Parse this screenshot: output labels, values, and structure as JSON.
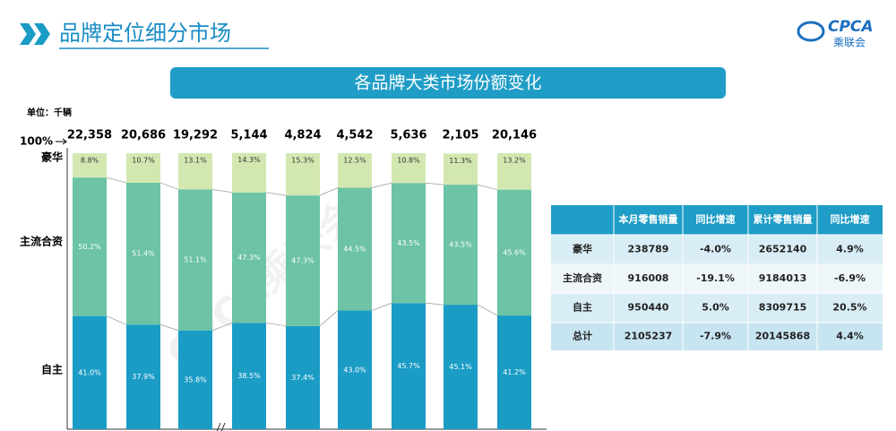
{
  "header": {
    "title": "品牌定位细分市场",
    "logo": "CPCA",
    "logo_sub": "乘联会"
  },
  "watermark": "CPCA乘联会",
  "chart_data": {
    "type": "stacked-bar",
    "title": "各品牌大类市场份额变化",
    "unit": "单位：千辆",
    "categories": [
      null,
      null,
      null,
      null,
      null,
      null,
      null,
      null,
      null
    ],
    "ylim": [
      0,
      100
    ],
    "yticks": [
      {
        "value": 100,
        "label": "100%"
      }
    ],
    "series": [
      {
        "name": "自主",
        "color": "#1a9cc5",
        "values": [
          41.0,
          37.9,
          35.8,
          38.5,
          37.4,
          43.0,
          45.7,
          45.1,
          41.2
        ],
        "value_labels": [
          "41.0%",
          "37.9%",
          "35.8%",
          "38.5%",
          "37.4%",
          "43.0%",
          "45.7%",
          "45.1%",
          "41.2%"
        ]
      },
      {
        "name": "主流合资",
        "color": "#6cc3a5",
        "values": [
          50.2,
          51.4,
          51.1,
          47.3,
          47.3,
          44.5,
          43.5,
          43.5,
          45.6
        ],
        "value_labels": [
          "50.2%",
          "51.4%",
          "51.1%",
          "47.3%",
          "47.3%",
          "44.5%",
          "43.5%",
          "43.5%",
          "45.6%"
        ]
      },
      {
        "name": "豪华",
        "color": "#d3e8b1",
        "values": [
          8.8,
          10.7,
          13.1,
          14.3,
          15.3,
          12.5,
          10.8,
          11.3,
          13.2
        ],
        "value_labels": [
          "8.8%",
          "10.7%",
          "13.1%",
          "14.3%",
          "15.3%",
          "12.5%",
          "10.8%",
          "11.3%",
          "13.2%"
        ]
      }
    ],
    "totals": {
      "values": [
        22358,
        20686,
        19292,
        5144,
        4824,
        4542,
        5636,
        2105,
        20146
      ],
      "value_labels": [
        "22,358",
        "20,686",
        "19,292",
        "5,144",
        "4,824",
        "4,542",
        "5,636",
        "2,105",
        "20,146"
      ]
    }
  },
  "table": {
    "columns": [
      "本月零售销量",
      "同比增速",
      "累计零售销量",
      "同比增速"
    ],
    "rows": [
      [
        "豪华",
        "238789",
        "-4.0%",
        "2652140",
        "4.9%"
      ],
      [
        "主流合资",
        "916008",
        "-19.1%",
        "9184013",
        "-6.9%"
      ],
      [
        "自主",
        "950440",
        "5.0%",
        "8309715",
        "20.5%"
      ],
      [
        "总计",
        "2105237",
        "-7.9%",
        "20145868",
        "4.4%"
      ]
    ]
  }
}
